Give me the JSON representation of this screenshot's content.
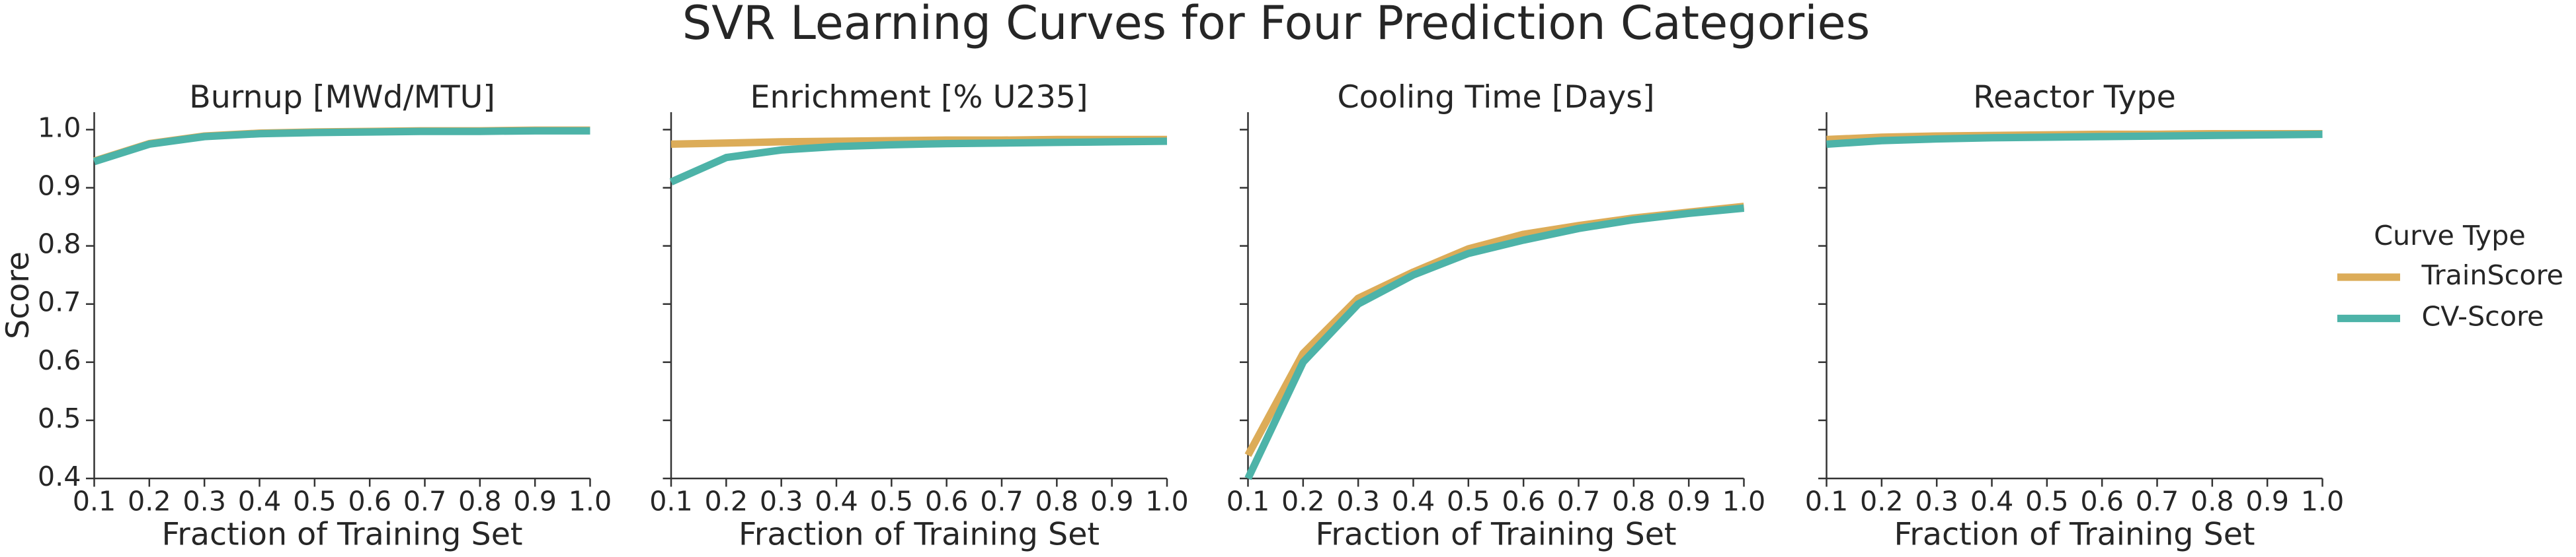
{
  "title": "SVR Learning Curves for Four Prediction Categories",
  "legend": {
    "title": "Curve Type"
  },
  "chart_data": [
    {
      "type": "line",
      "title": "Burnup [MWd/MTU]",
      "xlabel": "Fraction of Training Set",
      "ylabel": "Score",
      "x": [
        0.1,
        0.2,
        0.3,
        0.4,
        0.5,
        0.6,
        0.7,
        0.8,
        0.9,
        1.0
      ],
      "series": [
        {
          "name": "TrainScore",
          "color": "#dcac58",
          "values": [
            0.946,
            0.976,
            0.989,
            0.994,
            0.996,
            0.997,
            0.998,
            0.998,
            0.999,
            0.999
          ]
        },
        {
          "name": "CV-Score",
          "color": "#4db3a8",
          "values": [
            0.945,
            0.975,
            0.988,
            0.993,
            0.995,
            0.996,
            0.997,
            0.997,
            0.998,
            0.998
          ]
        }
      ],
      "xlim": [
        0.1,
        1.0
      ],
      "ylim": [
        0.4,
        1.03
      ],
      "xticks": [
        0.1,
        0.2,
        0.3,
        0.4,
        0.5,
        0.6,
        0.7,
        0.8,
        0.9,
        {
          "value": 1,
          "label": "1.0"
        }
      ],
      "yticks": [
        0.4,
        0.5,
        0.6,
        0.7,
        0.8,
        0.9,
        {
          "value": 1,
          "label": "1.0"
        }
      ]
    },
    {
      "type": "line",
      "title": "Enrichment [% U235]",
      "xlabel": "Fraction of Training Set",
      "x": [
        0.1,
        0.2,
        0.3,
        0.4,
        0.5,
        0.6,
        0.7,
        0.8,
        0.9,
        1.0
      ],
      "series": [
        {
          "name": "TrainScore",
          "color": "#dcac58",
          "values": [
            0.975,
            0.977,
            0.979,
            0.98,
            0.981,
            0.982,
            0.982,
            0.983,
            0.983,
            0.983
          ]
        },
        {
          "name": "CV-Score",
          "color": "#4db3a8",
          "values": [
            0.91,
            0.952,
            0.965,
            0.971,
            0.974,
            0.976,
            0.977,
            0.978,
            0.979,
            0.98
          ]
        }
      ],
      "xlim": [
        0.1,
        1.0
      ],
      "ylim": [
        0.4,
        1.03
      ],
      "xticks": [
        0.1,
        0.2,
        0.3,
        0.4,
        0.5,
        0.6,
        0.7,
        0.8,
        0.9,
        {
          "value": 1,
          "label": "1.0"
        }
      ],
      "yticks": [
        0.4,
        0.5,
        0.6,
        0.7,
        0.8,
        0.9,
        1
      ]
    },
    {
      "type": "line",
      "title": "Cooling Time [Days]",
      "xlabel": "Fraction of Training Set",
      "x": [
        0.1,
        0.2,
        0.3,
        0.4,
        0.5,
        0.6,
        0.7,
        0.8,
        0.9,
        1.0
      ],
      "series": [
        {
          "name": "TrainScore",
          "color": "#dcac58",
          "values": [
            0.44,
            0.615,
            0.71,
            0.755,
            0.795,
            0.82,
            0.835,
            0.848,
            0.858,
            0.868
          ]
        },
        {
          "name": "CV-Score",
          "color": "#4db3a8",
          "values": [
            0.4,
            0.6,
            0.7,
            0.75,
            0.787,
            0.81,
            0.83,
            0.845,
            0.856,
            0.865
          ]
        }
      ],
      "xlim": [
        0.1,
        1.0
      ],
      "ylim": [
        0.4,
        1.03
      ],
      "xticks": [
        0.1,
        0.2,
        0.3,
        0.4,
        0.5,
        0.6,
        0.7,
        0.8,
        0.9,
        {
          "value": 1,
          "label": "1.0"
        }
      ],
      "yticks": [
        0.4,
        0.5,
        0.6,
        0.7,
        0.8,
        0.9,
        1
      ]
    },
    {
      "type": "line",
      "title": "Reactor Type",
      "xlabel": "Fraction of Training Set",
      "x": [
        0.1,
        0.2,
        0.3,
        0.4,
        0.5,
        0.6,
        0.7,
        0.8,
        0.9,
        1.0
      ],
      "series": [
        {
          "name": "TrainScore",
          "color": "#dcac58",
          "values": [
            0.983,
            0.987,
            0.989,
            0.99,
            0.991,
            0.992,
            0.992,
            0.993,
            0.993,
            0.993
          ]
        },
        {
          "name": "CV-Score",
          "color": "#4db3a8",
          "values": [
            0.975,
            0.981,
            0.984,
            0.986,
            0.987,
            0.988,
            0.989,
            0.99,
            0.991,
            0.992
          ]
        }
      ],
      "xlim": [
        0.1,
        1.0
      ],
      "ylim": [
        0.4,
        1.03
      ],
      "xticks": [
        0.1,
        0.2,
        0.3,
        0.4,
        0.5,
        0.6,
        0.7,
        0.8,
        0.9,
        {
          "value": 1,
          "label": "1.0"
        }
      ],
      "yticks": [
        0.4,
        0.5,
        0.6,
        0.7,
        0.8,
        0.9,
        1
      ]
    }
  ]
}
